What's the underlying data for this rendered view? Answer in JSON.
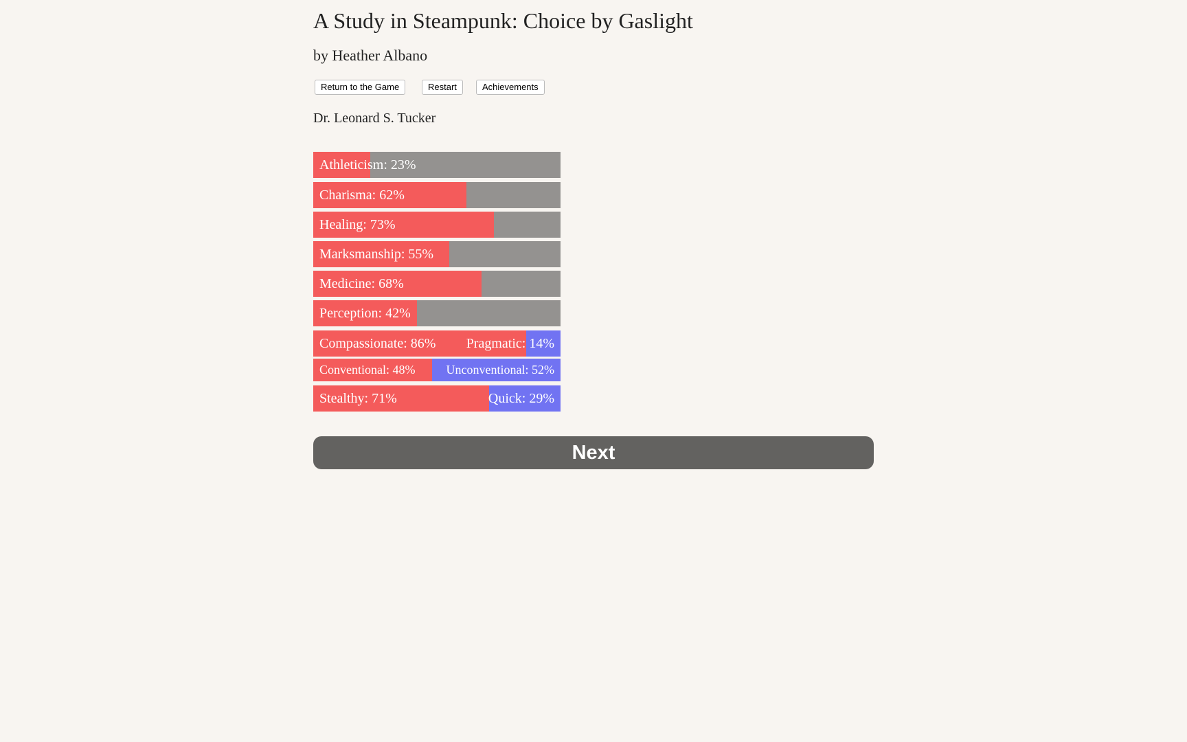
{
  "header": {
    "title": "A Study in Steampunk: Choice by Gaslight",
    "byline": "by Heather Albano"
  },
  "buttons": [
    "Return to the Game",
    "Restart",
    "Achievements"
  ],
  "character": "Dr. Leonard S. Tucker",
  "stats": [
    {
      "label": "Athleticism: 23%",
      "value": 23
    },
    {
      "label": "Charisma: 62%",
      "value": 62
    },
    {
      "label": "Healing: 73%",
      "value": 73
    },
    {
      "label": "Marksmanship: 55%",
      "value": 55
    },
    {
      "label": "Medicine: 68%",
      "value": 68
    },
    {
      "label": "Perception: 42%",
      "value": 42
    }
  ],
  "opposed": [
    {
      "left": {
        "label": "Compassionate: 86%",
        "value": 86
      },
      "right": {
        "label": "Pragmatic: 14%",
        "value": 14
      }
    },
    {
      "left": {
        "label": "Conventional: 48%",
        "value": 48
      },
      "right": {
        "label": "Unconventional: 52%",
        "value": 52
      }
    },
    {
      "left": {
        "label": "Stealthy: 71%",
        "value": 71
      },
      "right": {
        "label": "Quick: 29%",
        "value": 29
      }
    }
  ],
  "next": "Next"
}
